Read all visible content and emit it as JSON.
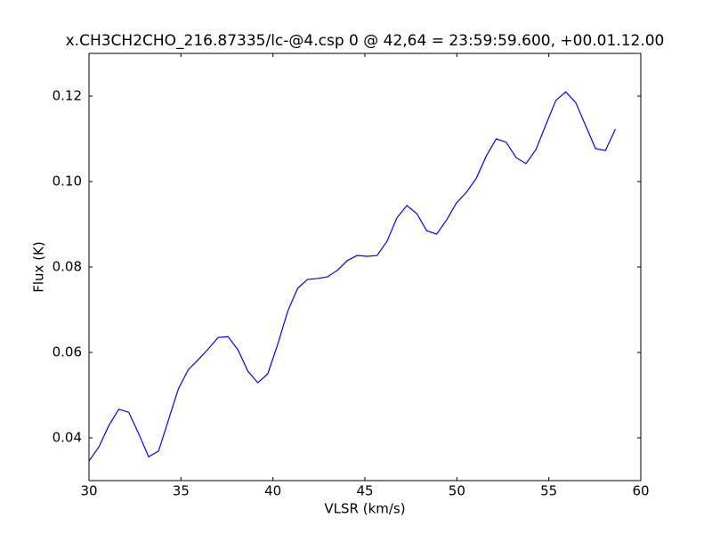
{
  "chart_data": {
    "type": "line",
    "title": "x.CH3CH2CHO_216.87335/lc-@4.csp 0 @ 42,64 = 23:59:59.600, +00.01.12.00",
    "x_label": "VLSR (km/s)",
    "y_label": "Flux (K)",
    "x": [
      30.0,
      30.54,
      31.08,
      31.62,
      32.16,
      32.7,
      33.24,
      33.78,
      34.32,
      34.86,
      35.4,
      35.94,
      36.48,
      37.02,
      37.56,
      38.1,
      38.64,
      39.18,
      39.72,
      40.26,
      40.8,
      41.34,
      41.88,
      42.42,
      42.96,
      43.5,
      44.04,
      44.58,
      45.12,
      45.66,
      46.2,
      46.74,
      47.28,
      47.82,
      48.36,
      48.9,
      49.44,
      49.98,
      50.52,
      51.06,
      51.6,
      52.14,
      52.68,
      53.22,
      53.76,
      54.3,
      54.84,
      55.38,
      55.92,
      56.46,
      57.0,
      57.54,
      58.08,
      58.62
    ],
    "series": [
      {
        "color": "#0000ff",
        "values": [
          0.0346,
          0.0379,
          0.0429,
          0.0467,
          0.046,
          0.041,
          0.0356,
          0.0369,
          0.0442,
          0.0515,
          0.056,
          0.0583,
          0.0608,
          0.0635,
          0.0637,
          0.0606,
          0.0556,
          0.0529,
          0.055,
          0.0619,
          0.0696,
          0.075,
          0.0771,
          0.0773,
          0.0777,
          0.0792,
          0.0815,
          0.0827,
          0.0825,
          0.0827,
          0.086,
          0.0915,
          0.0944,
          0.0925,
          0.0885,
          0.0877,
          0.091,
          0.095,
          0.0975,
          0.1008,
          0.106,
          0.11,
          0.1092,
          0.1056,
          0.1042,
          0.1075,
          0.1133,
          0.119,
          0.121,
          0.1185,
          0.1131,
          0.1077,
          0.1073,
          0.1123
        ]
      }
    ],
    "xlim": [
      30,
      60
    ],
    "xticks": [
      30,
      35,
      40,
      45,
      50,
      55,
      60
    ],
    "ylim": [
      0.03,
      0.13
    ],
    "yticks": [
      0.04,
      0.06,
      0.08,
      {
        "value": 0.1,
        "label": "0.10"
      },
      0.12
    ],
    "grid": false
  }
}
